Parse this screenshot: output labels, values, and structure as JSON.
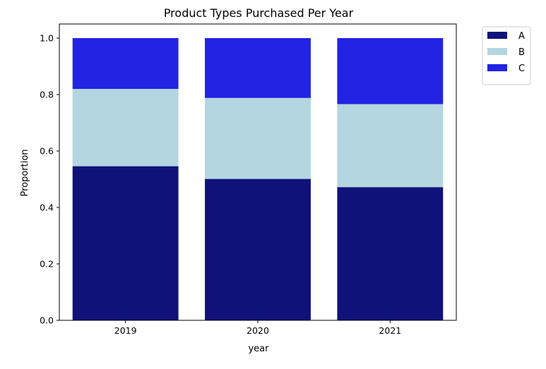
{
  "chart_data": {
    "type": "bar",
    "stacked": true,
    "title": "Product Types Purchased Per Year",
    "xlabel": "year",
    "ylabel": "Proportion",
    "categories": [
      "2019",
      "2020",
      "2021"
    ],
    "series": [
      {
        "name": "A",
        "color": "#10127a",
        "values": [
          0.546,
          0.501,
          0.472
        ]
      },
      {
        "name": "B",
        "color": "#b3d6e0",
        "values": [
          0.274,
          0.287,
          0.294
        ]
      },
      {
        "name": "C",
        "color": "#2223e3",
        "values": [
          0.18,
          0.212,
          0.234
        ]
      }
    ],
    "ylim": [
      0,
      1.05
    ],
    "yticks": [
      "0.0",
      "0.2",
      "0.4",
      "0.6",
      "0.8",
      "1.0"
    ],
    "grid": false,
    "legend": "outside-top-right"
  }
}
